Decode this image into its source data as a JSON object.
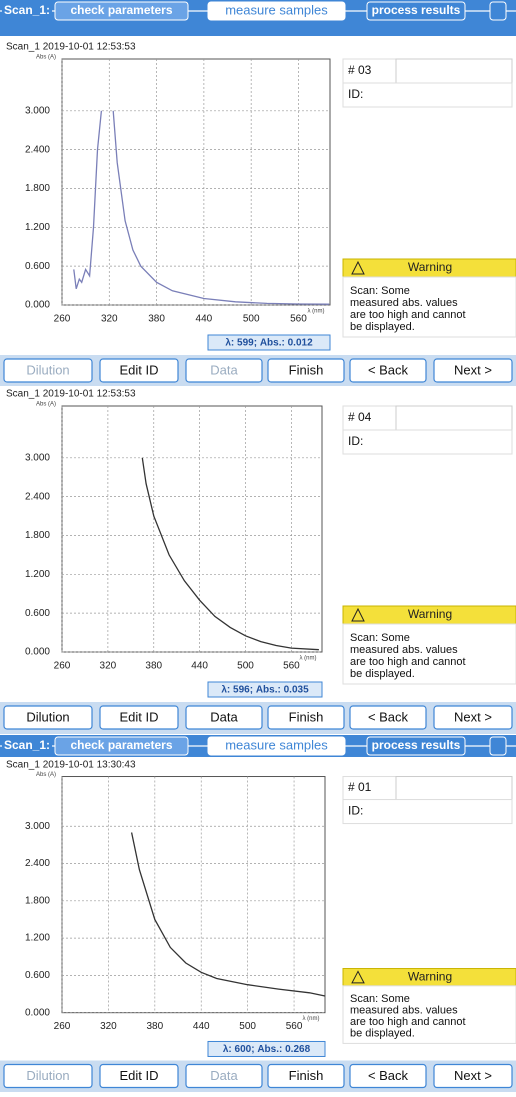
{
  "panels": [
    {
      "tabs": [
        "Scan_1:",
        "check parameters",
        "measure samples",
        "process results"
      ],
      "timestamp": "Scan_1 2019-10-01 12:53:53",
      "chart": {
        "type": "line",
        "y_label": "Abs (A)",
        "x_label": "λ (nm)",
        "xlim": [
          260,
          600
        ],
        "xticks": [
          260,
          320,
          380,
          440,
          500,
          560
        ],
        "ylim": [
          0,
          3.8
        ],
        "yticks": [
          {
            "value": 0,
            "label": "0.000"
          },
          {
            "value": 0.6,
            "label": "0.600"
          },
          {
            "value": 1.2,
            "label": "1.200"
          },
          {
            "value": 1.8,
            "label": "1.800"
          },
          {
            "value": 2.4,
            "label": "2.400"
          },
          {
            "value": 3.0,
            "label": "3.000"
          }
        ],
        "grid": true,
        "color": "#7a7fb8",
        "x": [
          275,
          278,
          282,
          285,
          290,
          295,
          300,
          305,
          310,
          318,
          325,
          330,
          340,
          350,
          360,
          380,
          400,
          440,
          480,
          520,
          560,
          599
        ],
        "values": [
          0.55,
          0.25,
          0.4,
          0.35,
          0.55,
          0.45,
          1.2,
          2.4,
          3.0,
          null,
          3.0,
          2.2,
          1.3,
          0.85,
          0.6,
          0.35,
          0.22,
          0.1,
          0.05,
          0.025,
          0.015,
          0.012
        ],
        "readout": "λ: 599; Abs.: 0.012"
      },
      "sample": "# 03",
      "id_label": "ID:",
      "warning": {
        "title": "Warning",
        "lines": [
          "Scan: Some",
          "measured abs. values",
          "are too high and cannot",
          "be displayed."
        ]
      },
      "buttons": [
        {
          "label": "Dilution",
          "enabled": false
        },
        {
          "label": "Edit ID",
          "enabled": true
        },
        {
          "label": "Data",
          "enabled": false
        },
        {
          "label": "Finish",
          "enabled": true
        },
        {
          "label": "< Back",
          "enabled": true
        },
        {
          "label": "Next >",
          "enabled": true
        }
      ]
    },
    {
      "timestamp": "Scan_1 2019-10-01 12:53:53",
      "chart": {
        "type": "line",
        "y_label": "Abs (A)",
        "x_label": "λ (nm)",
        "xlim": [
          260,
          600
        ],
        "xticks": [
          260,
          320,
          380,
          440,
          500,
          560
        ],
        "ylim": [
          0,
          3.8
        ],
        "yticks": [
          {
            "value": 0,
            "label": "0.000"
          },
          {
            "value": 0.6,
            "label": "0.600"
          },
          {
            "value": 1.2,
            "label": "1.200"
          },
          {
            "value": 1.8,
            "label": "1.800"
          },
          {
            "value": 2.4,
            "label": "2.400"
          },
          {
            "value": 3.0,
            "label": "3.000"
          }
        ],
        "grid": true,
        "color": "#333333",
        "x": [
          365,
          370,
          380,
          400,
          420,
          440,
          460,
          480,
          500,
          520,
          540,
          560,
          596
        ],
        "values": [
          3.0,
          2.6,
          2.1,
          1.5,
          1.1,
          0.8,
          0.55,
          0.38,
          0.25,
          0.16,
          0.1,
          0.06,
          0.035
        ],
        "readout": "λ: 596; Abs.: 0.035"
      },
      "sample": "# 04",
      "id_label": "ID:",
      "warning": {
        "title": "Warning",
        "lines": [
          "Scan: Some",
          "measured abs. values",
          "are too high and cannot",
          "be displayed."
        ]
      },
      "buttons": [
        {
          "label": "Dilution",
          "enabled": true
        },
        {
          "label": "Edit ID",
          "enabled": true
        },
        {
          "label": "Data",
          "enabled": true
        },
        {
          "label": "Finish",
          "enabled": true
        },
        {
          "label": "< Back",
          "enabled": true
        },
        {
          "label": "Next >",
          "enabled": true
        }
      ]
    },
    {
      "tabs": [
        "Scan_1:",
        "check parameters",
        "measure samples",
        "process results"
      ],
      "timestamp": "Scan_1 2019-10-01 13:30:43",
      "chart": {
        "type": "line",
        "y_label": "Abs (A)",
        "x_label": "λ (nm)",
        "xlim": [
          260,
          600
        ],
        "xticks": [
          260,
          320,
          380,
          440,
          500,
          560
        ],
        "ylim": [
          0,
          3.8
        ],
        "yticks": [
          {
            "value": 0,
            "label": "0.000"
          },
          {
            "value": 0.6,
            "label": "0.600"
          },
          {
            "value": 1.2,
            "label": "1.200"
          },
          {
            "value": 1.8,
            "label": "1.800"
          },
          {
            "value": 2.4,
            "label": "2.400"
          },
          {
            "value": 3.0,
            "label": "3.000"
          }
        ],
        "grid": true,
        "color": "#333333",
        "x": [
          350,
          360,
          380,
          400,
          420,
          440,
          460,
          500,
          540,
          580,
          600
        ],
        "values": [
          2.9,
          2.3,
          1.5,
          1.05,
          0.8,
          0.65,
          0.55,
          0.45,
          0.38,
          0.32,
          0.268
        ],
        "readout": "λ: 600; Abs.: 0.268"
      },
      "sample": "# 01",
      "id_label": "ID:",
      "warning": {
        "title": "Warning",
        "lines": [
          "Scan: Some",
          "measured abs. values",
          "are too high and cannot",
          "be displayed."
        ]
      },
      "buttons": [
        {
          "label": "Dilution",
          "enabled": false
        },
        {
          "label": "Edit ID",
          "enabled": true
        },
        {
          "label": "Data",
          "enabled": false
        },
        {
          "label": "Finish",
          "enabled": true
        },
        {
          "label": "< Back",
          "enabled": true
        },
        {
          "label": "Next >",
          "enabled": true
        }
      ]
    }
  ]
}
